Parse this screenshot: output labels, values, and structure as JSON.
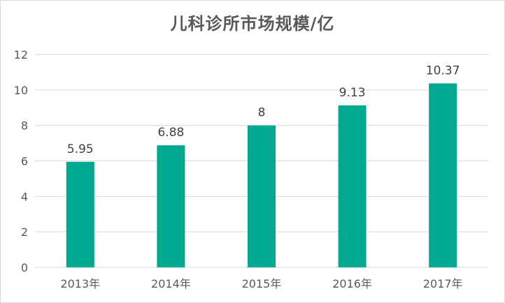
{
  "chart_data": {
    "type": "bar",
    "title": "儿科诊所市场规模/亿",
    "categories": [
      "2013年",
      "2014年",
      "2015年",
      "2016年",
      "2017年"
    ],
    "values": [
      5.95,
      6.88,
      8,
      9.13,
      10.37
    ],
    "data_labels": [
      "5.95",
      "6.88",
      "8",
      "9.13",
      "10.37"
    ],
    "ylim": [
      0,
      12
    ],
    "yticks": [
      "0",
      "2",
      "4",
      "6",
      "8",
      "10",
      "12"
    ],
    "grid": true,
    "legend": "none",
    "bar_color": "#00A98F",
    "grid_color": "#d9d9d9"
  }
}
